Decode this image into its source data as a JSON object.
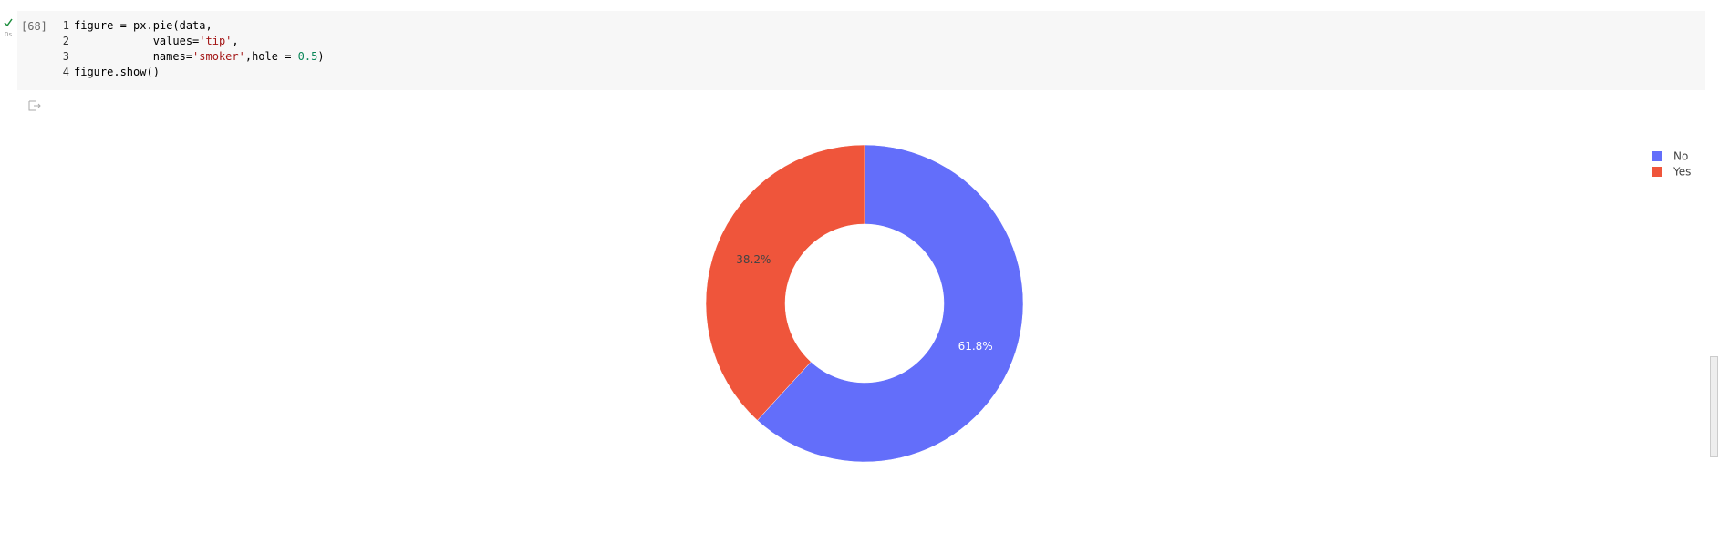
{
  "cell": {
    "status": "0s",
    "execution_count": "[68]"
  },
  "code": {
    "line_numbers": [
      1,
      2,
      3,
      4
    ],
    "lines": [
      [
        {
          "text": "figure = px.pie(data,",
          "color": "#000000"
        }
      ],
      [
        {
          "text": "            values=",
          "color": "#000000"
        },
        {
          "text": "'tip'",
          "color": "#a31515"
        },
        {
          "text": ",",
          "color": "#000000"
        }
      ],
      [
        {
          "text": "            names=",
          "color": "#000000"
        },
        {
          "text": "'smoker'",
          "color": "#a31515"
        },
        {
          "text": ",hole = ",
          "color": "#000000"
        },
        {
          "text": "0.5",
          "color": "#098658"
        },
        {
          "text": ")",
          "color": "#000000"
        }
      ],
      [
        {
          "text": "figure.show()",
          "color": "#000000"
        }
      ]
    ]
  },
  "chart_data": {
    "type": "pie",
    "hole": 0.5,
    "categories": [
      "No",
      "Yes"
    ],
    "values": [
      61.8,
      38.2
    ],
    "value_labels": [
      "61.8%",
      "38.2%"
    ],
    "colors": [
      "#636efa",
      "#ef553b"
    ],
    "label_colors": [
      "#ffffff",
      "#444444"
    ],
    "legend": "top-right"
  }
}
